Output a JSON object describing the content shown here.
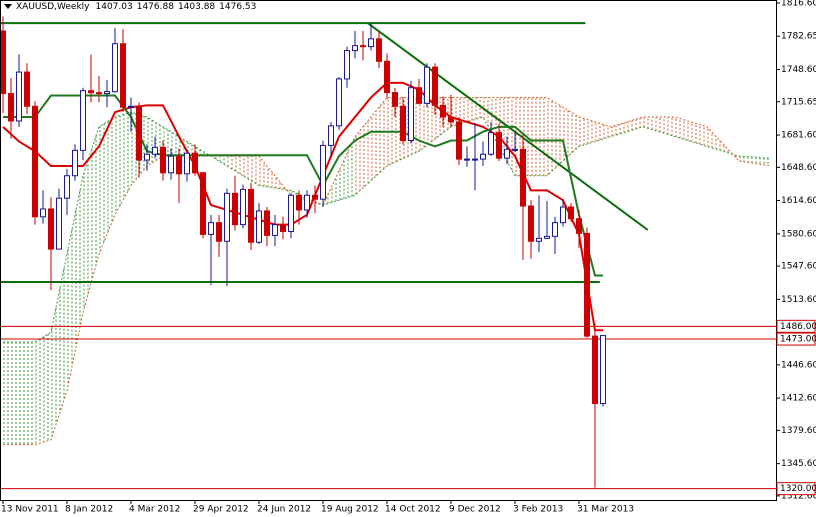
{
  "chart_data": {
    "type": "candlestick",
    "symbol": "XAUUSD,Weekly",
    "ohlc": [
      1407.03,
      1476.88,
      1403.88,
      1476.53
    ],
    "x": [
      0,
      1,
      2,
      3,
      4,
      5,
      6,
      7,
      8,
      9,
      10,
      11,
      12,
      13,
      14,
      15,
      16,
      17,
      18,
      19,
      20,
      21,
      22,
      23,
      24,
      25,
      26,
      27,
      28,
      29,
      30,
      31,
      32,
      33,
      34,
      35,
      36,
      37,
      38,
      39,
      40,
      41,
      42,
      43,
      44,
      45,
      46,
      47,
      48,
      49,
      50,
      51,
      52,
      53,
      54,
      55,
      56,
      57,
      58,
      59,
      60,
      61,
      62,
      63,
      64,
      65,
      66,
      67,
      68,
      69,
      70,
      71,
      72,
      73,
      74,
      75
    ],
    "open": [
      1788,
      1724,
      1696,
      1746,
      1711,
      1598,
      1606,
      1565,
      1617,
      1640,
      1666,
      1727,
      1725,
      1724,
      1726,
      1775,
      1710,
      1711,
      1656,
      1662,
      1669,
      1643,
      1660,
      1642,
      1663,
      1643,
      1580,
      1592,
      1573,
      1622,
      1590,
      1626,
      1572,
      1604,
      1579,
      1590,
      1583,
      1620,
      1605,
      1620,
      1616,
      1671,
      1691,
      1739,
      1768,
      1773,
      1772,
      1780,
      1757,
      1725,
      1711,
      1676,
      1730,
      1714,
      1751,
      1712,
      1700,
      1695,
      1657,
      1657,
      1657,
      1662,
      1684,
      1658,
      1667,
      1667,
      1609,
      1573,
      1576,
      1578,
      1592,
      1608,
      1596,
      1581,
      1476,
      1407.03
    ],
    "high": [
      1803,
      1740,
      1764,
      1755,
      1716,
      1625,
      1618,
      1627,
      1647,
      1672,
      1730,
      1764,
      1742,
      1738,
      1791,
      1790,
      1720,
      1715,
      1672,
      1680,
      1676,
      1668,
      1668,
      1667,
      1672,
      1644,
      1600,
      1600,
      1627,
      1640,
      1631,
      1633,
      1612,
      1608,
      1600,
      1598,
      1622,
      1625,
      1625,
      1630,
      1676,
      1695,
      1741,
      1772,
      1788,
      1788,
      1796,
      1787,
      1765,
      1730,
      1720,
      1737,
      1739,
      1755,
      1755,
      1721,
      1723,
      1700,
      1670,
      1694,
      1675,
      1695,
      1693,
      1680,
      1685,
      1682,
      1615,
      1620,
      1614,
      1598,
      1616,
      1612,
      1605,
      1587,
      1489,
      1476.88
    ],
    "low": [
      1704,
      1678,
      1690,
      1703,
      1590,
      1591,
      1523,
      1565,
      1600,
      1635,
      1656,
      1715,
      1715,
      1710,
      1725,
      1705,
      1685,
      1638,
      1645,
      1658,
      1635,
      1636,
      1612,
      1634,
      1640,
      1576,
      1528,
      1557,
      1527,
      1584,
      1586,
      1564,
      1570,
      1568,
      1568,
      1575,
      1576,
      1590,
      1597,
      1602,
      1608,
      1660,
      1687,
      1730,
      1760,
      1758,
      1768,
      1750,
      1719,
      1700,
      1672,
      1673,
      1713,
      1710,
      1702,
      1690,
      1690,
      1651,
      1649,
      1625,
      1650,
      1660,
      1655,
      1652,
      1664,
      1554,
      1555,
      1562,
      1575,
      1560,
      1588,
      1593,
      1566,
      1474,
      1321,
      1403.88
    ],
    "close": [
      1724,
      1696,
      1746,
      1711,
      1598,
      1606,
      1565,
      1617,
      1640,
      1666,
      1727,
      1725,
      1724,
      1726,
      1775,
      1710,
      1711,
      1656,
      1662,
      1669,
      1643,
      1660,
      1642,
      1663,
      1643,
      1580,
      1592,
      1573,
      1622,
      1590,
      1626,
      1572,
      1604,
      1579,
      1590,
      1583,
      1620,
      1605,
      1620,
      1616,
      1671,
      1691,
      1739,
      1768,
      1773,
      1772,
      1780,
      1757,
      1725,
      1711,
      1676,
      1730,
      1714,
      1751,
      1712,
      1700,
      1695,
      1657,
      1657,
      1657,
      1662,
      1684,
      1658,
      1667,
      1667,
      1609,
      1573,
      1576,
      1578,
      1592,
      1608,
      1596,
      1581,
      1476,
      1407.03,
      1476.53
    ],
    "up_color": "#1a1a8c",
    "down_color": "#cc0000",
    "lines": [
      {
        "color": "#dd0000",
        "x": [
          0,
          2,
          4,
          6,
          8,
          10,
          12,
          14,
          16,
          18,
          20,
          22,
          24,
          26,
          28,
          30,
          32,
          34,
          36,
          38,
          40,
          42,
          44,
          46,
          48,
          50,
          52,
          54,
          56,
          58,
          60,
          62,
          64,
          66,
          68,
          70,
          72,
          74,
          75
        ],
        "values": [
          1690,
          1675,
          1665,
          1650,
          1650,
          1650,
          1670,
          1705,
          1710,
          1712,
          1712,
          1680,
          1650,
          1610,
          1605,
          1600,
          1595,
          1590,
          1590,
          1600,
          1640,
          1680,
          1700,
          1720,
          1735,
          1735,
          1728,
          1712,
          1700,
          1695,
          1690,
          1680,
          1660,
          1625,
          1625,
          1615,
          1580,
          1482,
          1482
        ]
      },
      {
        "color": "#1f7a1f",
        "x": [
          0,
          2,
          4,
          6,
          8,
          10,
          12,
          14,
          16,
          18,
          20,
          22,
          24,
          26,
          28,
          30,
          32,
          34,
          36,
          38,
          40,
          42,
          44,
          46,
          48,
          50,
          52,
          54,
          56,
          58,
          60,
          62,
          64,
          66,
          68,
          70,
          72,
          74,
          75
        ],
        "values": [
          1700,
          1700,
          1700,
          1722,
          1722,
          1722,
          1722,
          1722,
          1700,
          1665,
          1661,
          1661,
          1661,
          1661,
          1661,
          1661,
          1661,
          1661,
          1661,
          1661,
          1630,
          1660,
          1676,
          1685,
          1685,
          1685,
          1676,
          1670,
          1676,
          1676,
          1685,
          1690,
          1690,
          1676,
          1676,
          1676,
          1600,
          1538,
          1538
        ]
      }
    ],
    "cloud": {
      "x": [
        0,
        4,
        6,
        8,
        10,
        12,
        14,
        16,
        18,
        20,
        22,
        24,
        28,
        32,
        36,
        40,
        44,
        48,
        52,
        56,
        60,
        64,
        68,
        72,
        76,
        80,
        84,
        88,
        92,
        96
      ],
      "span_a": [
        1470,
        1470,
        1480,
        1560,
        1640,
        1690,
        1700,
        1705,
        1700,
        1690,
        1680,
        1670,
        1650,
        1630,
        1625,
        1610,
        1620,
        1650,
        1665,
        1690,
        1700,
        1640,
        1640,
        1670,
        1680,
        1690,
        1680,
        1670,
        1660,
        1658
      ],
      "span_b": [
        1365,
        1365,
        1370,
        1420,
        1500,
        1560,
        1600,
        1630,
        1650,
        1660,
        1660,
        1660,
        1660,
        1660,
        1620,
        1610,
        1680,
        1720,
        1720,
        1720,
        1720,
        1720,
        1720,
        1700,
        1690,
        1700,
        1700,
        1690,
        1655,
        1650
      ],
      "up_color": "#3a9a3a",
      "down_color": "#d2602a"
    },
    "trendlines": [
      {
        "color": "#0a6e0a",
        "x": [
          -0.4,
          72.8
        ],
        "values": [
          1796.1,
          1796.1
        ]
      },
      {
        "color": "#0a6e0a",
        "x": [
          -0.4,
          74.6
        ],
        "values": [
          1531.3,
          1531.3
        ]
      },
      {
        "color": "#0a6e0a",
        "x": [
          45.6,
          80.6
        ],
        "values": [
          1796.1,
          1584.5
        ]
      }
    ],
    "price_lines": [
      {
        "value": 1486,
        "label": "1486.00"
      },
      {
        "value": 1473,
        "label": "1473.00"
      },
      {
        "value": 1320,
        "label": "1320.00"
      }
    ],
    "price_line_color": "#d00000",
    "xlim": [
      -0.375,
      96.625
    ],
    "ylim": [
      1308.4,
      1819.7
    ],
    "xticks": [
      {
        "value": 0,
        "label": "13 Nov 2011"
      },
      {
        "value": 8,
        "label": "8 Jan 2012"
      },
      {
        "value": 16,
        "label": "4 Mar 2012"
      },
      {
        "value": 24,
        "label": "29 Apr 2012"
      },
      {
        "value": 32,
        "label": "24 Jun 2012"
      },
      {
        "value": 40,
        "label": "19 Aug 2012"
      },
      {
        "value": 48,
        "label": "14 Oct 2012"
      },
      {
        "value": 56,
        "label": "9 Dec 2012"
      },
      {
        "value": 64,
        "label": "3 Feb 2013"
      },
      {
        "value": 72,
        "label": "31 Mar 2013"
      }
    ],
    "yticks": [
      {
        "value": 1816.6,
        "label": "1816.60"
      },
      1782.65,
      {
        "value": 1748.6,
        "label": "1748.60"
      },
      1715.65,
      {
        "value": 1681.6,
        "label": "1681.60"
      },
      {
        "value": 1648.6,
        "label": "1648.60"
      },
      {
        "value": 1614.6,
        "label": "1614.60"
      },
      {
        "value": 1580.6,
        "label": "1580.60"
      },
      {
        "value": 1547.6,
        "label": "1547.60"
      },
      {
        "value": 1513.6,
        "label": "1513.60"
      },
      {
        "value": 1446.6,
        "label": "1446.60"
      },
      {
        "value": 1412.6,
        "label": "1412.60"
      },
      {
        "value": 1379.6,
        "label": "1379.60"
      },
      {
        "value": 1345.6,
        "label": "1345.60"
      },
      {
        "value": 1312.6,
        "label": "1312.60"
      }
    ]
  }
}
